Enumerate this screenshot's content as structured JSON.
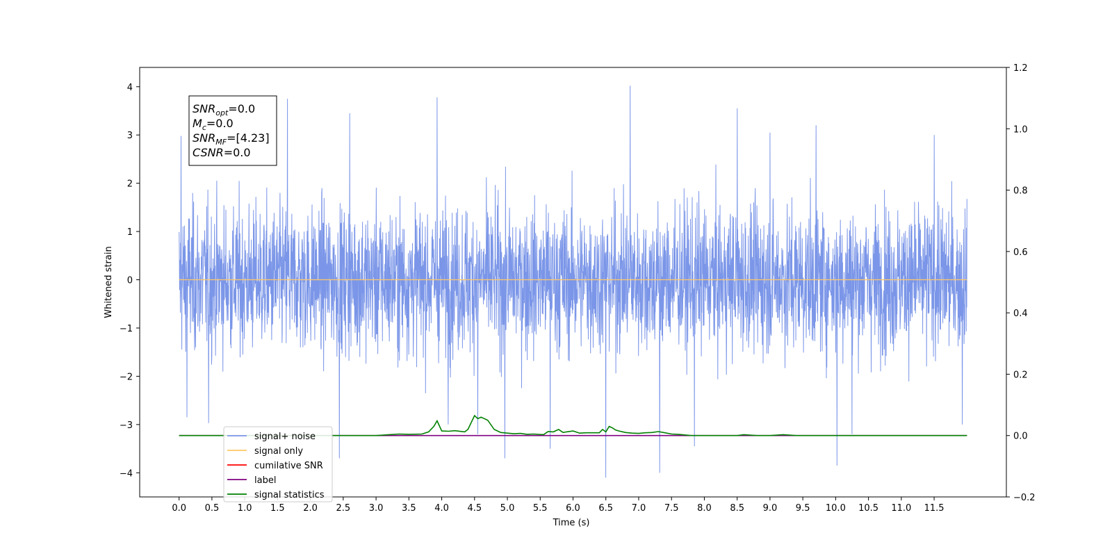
{
  "chart_data": {
    "type": "line",
    "xlabel": "Time (s)",
    "ylabel": "Whitened strain",
    "xlim": [
      -0.6,
      12.6
    ],
    "ylim": [
      -4.5,
      4.4
    ],
    "y2lim": [
      -0.2,
      1.2
    ],
    "x_ticks": [
      "0.0",
      "0.5",
      "1.0",
      "1.5",
      "2.0",
      "2.5",
      "3.0",
      "3.5",
      "4.0",
      "4.5",
      "5.0",
      "5.5",
      "6.0",
      "6.5",
      "7.0",
      "7.5",
      "8.0",
      "8.5",
      "9.0",
      "9.5",
      "10.0",
      "10.5",
      "11.0",
      "11.5"
    ],
    "y_ticks": [
      "4",
      "3",
      "2",
      "1",
      "0",
      "−1",
      "−2",
      "−3",
      "−4"
    ],
    "y2_ticks": [
      "1.2",
      "1.0",
      "0.8",
      "0.6",
      "0.4",
      "0.2",
      "0.0",
      "−0.2"
    ],
    "annotation": {
      "lines": [
        {
          "main": "SNR",
          "sub": "opt",
          "rest": "=0.0"
        },
        {
          "main": "M",
          "sub": "c",
          "rest": "=0.0"
        },
        {
          "main": "SNR",
          "sub": "MF",
          "rest": "=[4.23]"
        },
        {
          "main": "CSNR",
          "sub": "",
          "rest": "=0.0"
        }
      ]
    },
    "legend": {
      "placement": "lower-left",
      "entries": [
        {
          "label": "signal+ noise",
          "color": "#7b96e8"
        },
        {
          "label": "signal only",
          "color": "#ffc864"
        },
        {
          "label": "cumilative SNR",
          "color": "#ff0000"
        },
        {
          "label": "label",
          "color": "#800080"
        },
        {
          "label": "signal statistics",
          "color": "#008000"
        }
      ]
    },
    "series": [
      {
        "name": "signal+ noise",
        "axis": "left",
        "color": "#7b96e8",
        "x_range": [
          0.0,
          12.0
        ],
        "envelope_note": "dense noise trace",
        "spikes": [
          {
            "x": 0.03,
            "y": 2.98
          },
          {
            "x": 0.12,
            "y": -2.85
          },
          {
            "x": 0.45,
            "y": -2.97
          },
          {
            "x": 1.65,
            "y": 3.75
          },
          {
            "x": 2.6,
            "y": 3.45
          },
          {
            "x": 2.44,
            "y": -3.7
          },
          {
            "x": 3.93,
            "y": 3.78
          },
          {
            "x": 4.1,
            "y": -3.0
          },
          {
            "x": 4.55,
            "y": -3.2
          },
          {
            "x": 4.96,
            "y": -3.7
          },
          {
            "x": 5.65,
            "y": -3.5
          },
          {
            "x": 6.5,
            "y": -4.1
          },
          {
            "x": 6.87,
            "y": 4.02
          },
          {
            "x": 7.32,
            "y": -4.0
          },
          {
            "x": 7.85,
            "y": -3.45
          },
          {
            "x": 8.5,
            "y": 3.55
          },
          {
            "x": 9.0,
            "y": 3.05
          },
          {
            "x": 9.7,
            "y": 3.2
          },
          {
            "x": 10.02,
            "y": -3.85
          },
          {
            "x": 10.25,
            "y": -3.2
          },
          {
            "x": 11.5,
            "y": 3.0
          },
          {
            "x": 11.93,
            "y": -3.0
          }
        ]
      },
      {
        "name": "signal only",
        "axis": "left",
        "color": "#ffc864",
        "x": [
          0.0,
          12.0
        ],
        "y": [
          0.0,
          0.0
        ]
      },
      {
        "name": "label",
        "axis": "right",
        "color": "#800080",
        "x": [
          0.0,
          12.0
        ],
        "y": [
          0.0,
          0.0
        ]
      },
      {
        "name": "signal statistics",
        "axis": "right",
        "color": "#008000",
        "x": [
          0.0,
          3.0,
          3.2,
          3.35,
          3.5,
          3.7,
          3.8,
          3.88,
          3.93,
          4.0,
          4.1,
          4.2,
          4.35,
          4.4,
          4.5,
          4.55,
          4.6,
          4.7,
          4.8,
          4.9,
          5.0,
          5.1,
          5.2,
          5.3,
          5.4,
          5.55,
          5.62,
          5.7,
          5.78,
          5.85,
          5.9,
          6.0,
          6.1,
          6.2,
          6.4,
          6.45,
          6.5,
          6.55,
          6.6,
          6.65,
          6.7,
          6.8,
          6.9,
          7.0,
          7.1,
          7.2,
          7.3,
          7.4,
          7.5,
          7.6,
          7.7,
          7.8,
          8.0,
          8.5,
          8.6,
          8.8,
          9.0,
          9.2,
          9.4,
          9.6,
          9.8,
          10.0,
          10.5,
          11.0,
          12.0
        ],
        "y": [
          0.0,
          0.0,
          0.003,
          0.005,
          0.004,
          0.005,
          0.012,
          0.03,
          0.048,
          0.015,
          0.014,
          0.016,
          0.012,
          0.02,
          0.065,
          0.055,
          0.06,
          0.05,
          0.02,
          0.01,
          0.008,
          0.006,
          0.007,
          0.004,
          0.005,
          0.003,
          0.013,
          0.012,
          0.02,
          0.01,
          0.012,
          0.015,
          0.008,
          0.009,
          0.009,
          0.02,
          0.012,
          0.03,
          0.025,
          0.018,
          0.015,
          0.01,
          0.008,
          0.007,
          0.009,
          0.01,
          0.013,
          0.009,
          0.005,
          0.004,
          0.002,
          0.0,
          0.0,
          0.0,
          0.003,
          0.0,
          0.0,
          0.003,
          0.0,
          0.0,
          0.0,
          0.0,
          0.0,
          0.0,
          0.0
        ]
      }
    ]
  }
}
